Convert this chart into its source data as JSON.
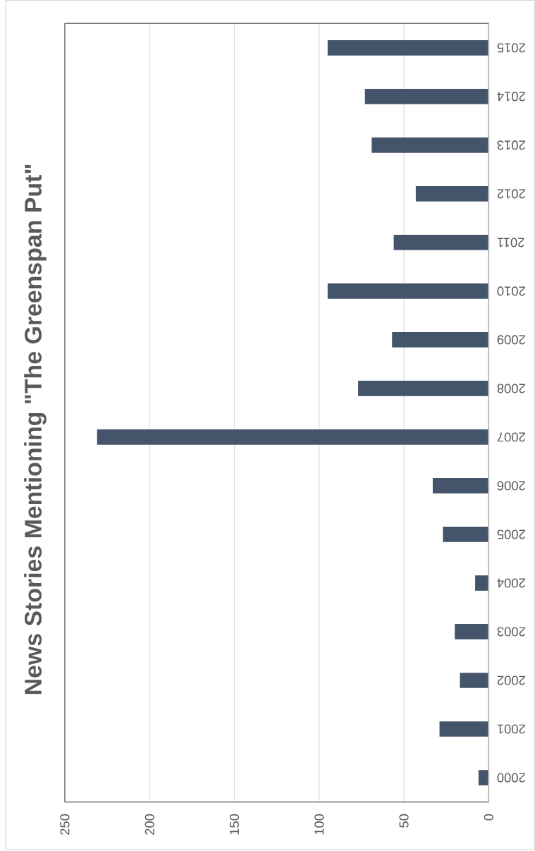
{
  "chart_data": {
    "type": "bar",
    "orientation": "horizontal",
    "title": "News Stories Mentioning \"The Greenspan Put\"",
    "categories": [
      "2015",
      "2014",
      "2013",
      "2012",
      "2011",
      "2010",
      "2009",
      "2008",
      "2007",
      "2006",
      "2005",
      "2004",
      "2003",
      "2002",
      "2001",
      "2000"
    ],
    "values": [
      95,
      73,
      69,
      43,
      56,
      95,
      57,
      77,
      231,
      33,
      27,
      8,
      20,
      17,
      29,
      6
    ],
    "color": "#44546a",
    "xlim": [
      250,
      0
    ],
    "xticks": [
      0,
      50,
      100,
      150,
      200,
      250
    ],
    "grid": "x"
  }
}
